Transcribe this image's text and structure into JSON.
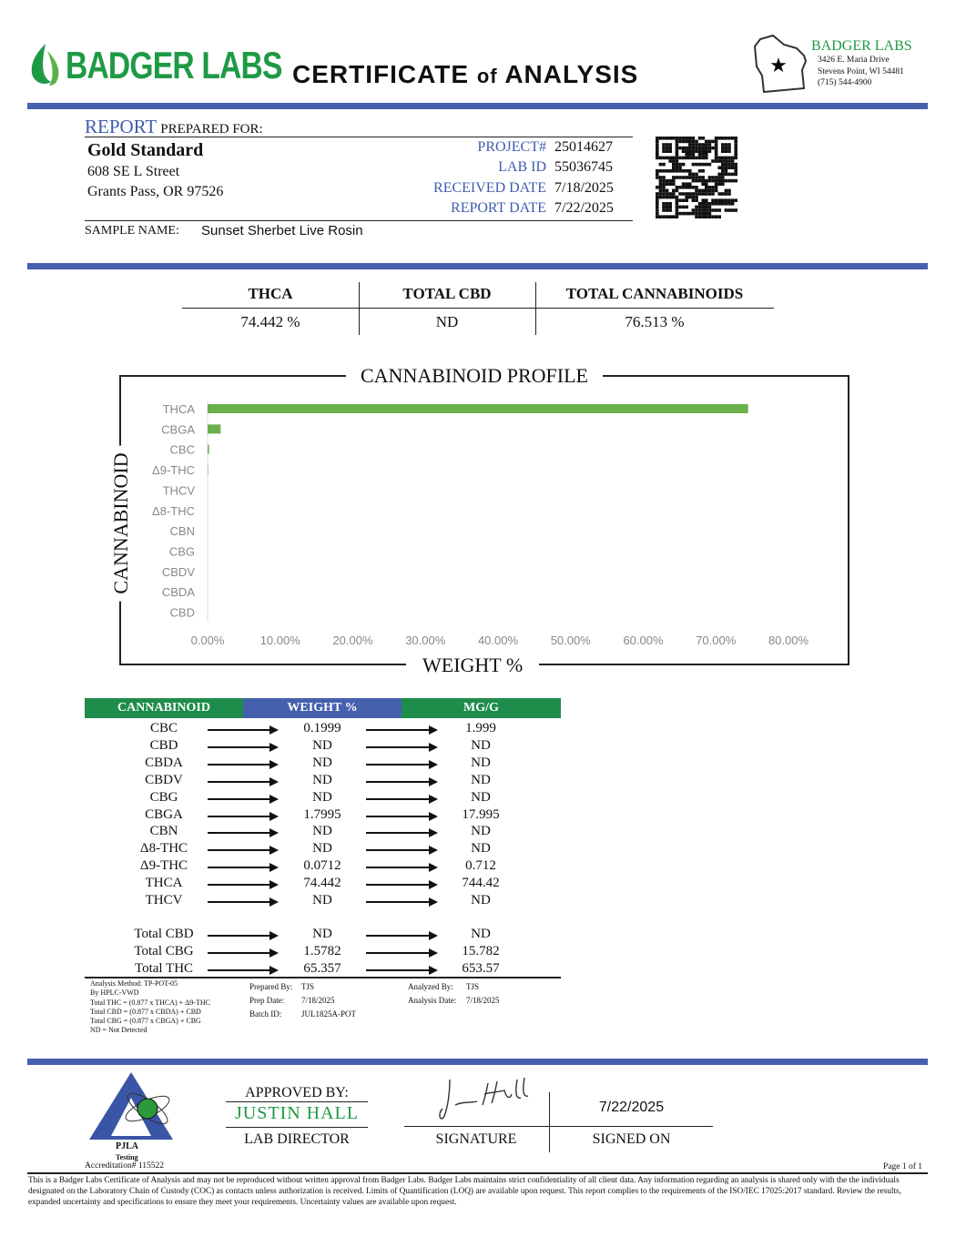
{
  "header": {
    "logo_text": "BADGER LABS",
    "title_part1": "CERTIFICATE",
    "title_part2": "of",
    "title_part3": "ANALYSIS",
    "lab_name": "BADGER LABS",
    "lab_address1": "3426 E. Maria Drive",
    "lab_address2": "Stevens Point, WI 54481",
    "lab_phone": "(715) 544-4900"
  },
  "report": {
    "report_label": "REPORT",
    "prepared_for": "PREPARED FOR:",
    "client_name": "Gold Standard",
    "client_street": "608 SE L Street",
    "client_city": "Grants Pass, OR 97526",
    "fields": [
      {
        "label": "PROJECT#",
        "value": "25014627"
      },
      {
        "label": "LAB ID",
        "value": "55036745"
      },
      {
        "label": "RECEIVED DATE",
        "value": "7/18/2025"
      },
      {
        "label": "REPORT DATE",
        "value": "7/22/2025"
      }
    ],
    "sample_label": "SAMPLE NAME:",
    "sample_name": "Sunset Sherbet Live Rosin"
  },
  "summary": {
    "headers": [
      "THCA",
      "TOTAL CBD",
      "TOTAL CANNABINOIDS"
    ],
    "values": [
      "74.442 %",
      "ND",
      "76.513 %"
    ]
  },
  "chart_data": {
    "type": "bar",
    "orientation": "horizontal",
    "title": "CANNABINOID PROFILE",
    "ylabel": "CANNABINOID",
    "xlabel": "WEIGHT %",
    "categories": [
      "THCA",
      "CBGA",
      "CBC",
      "Δ9-THC",
      "THCV",
      "Δ8-THC",
      "CBN",
      "CBG",
      "CBDV",
      "CBDA",
      "CBD"
    ],
    "values": [
      74.442,
      1.7995,
      0.1999,
      0.0712,
      0,
      0,
      0,
      0,
      0,
      0,
      0
    ],
    "xlim": [
      0,
      80
    ],
    "xticks": [
      "0.00%",
      "10.00%",
      "20.00%",
      "30.00%",
      "40.00%",
      "50.00%",
      "60.00%",
      "70.00%",
      "80.00%"
    ],
    "grid": false,
    "bar_color": "#6ab04c"
  },
  "results": {
    "headers": [
      "CANNABINOID",
      "WEIGHT %",
      "MG/G"
    ],
    "rows": [
      [
        "CBC",
        "0.1999",
        "1.999"
      ],
      [
        "CBD",
        "ND",
        "ND"
      ],
      [
        "CBDA",
        "ND",
        "ND"
      ],
      [
        "CBDV",
        "ND",
        "ND"
      ],
      [
        "CBG",
        "ND",
        "ND"
      ],
      [
        "CBGA",
        "1.7995",
        "17.995"
      ],
      [
        "CBN",
        "ND",
        "ND"
      ],
      [
        "Δ8-THC",
        "ND",
        "ND"
      ],
      [
        "Δ9-THC",
        "0.0712",
        "0.712"
      ],
      [
        "THCA",
        "74.442",
        "744.42"
      ],
      [
        "THCV",
        "ND",
        "ND"
      ]
    ],
    "totals": [
      [
        "Total CBD",
        "ND",
        "ND"
      ],
      [
        "Total CBG",
        "1.5782",
        "15.782"
      ],
      [
        "Total THC",
        "65.357",
        "653.57"
      ]
    ]
  },
  "notes": {
    "method": [
      "Analysis Method: TP-POT-05",
      "By HPLC-VWD",
      "Total THC = (0.877 x  THCA) + Δ9-THC",
      "Total CBD = (0.877 x  CBDA) + CBD",
      "Total CBG = (0.877 x  CBGA) + CBG",
      "ND = Not Detected"
    ],
    "prepared_by_label": "Prepared By:",
    "prepared_by": "TJS",
    "prep_date_label": "Prep Date:",
    "prep_date": "7/18/2025",
    "batch_label": "Batch ID:",
    "batch": "JUL1825A-POT",
    "analyzed_by_label": "Analyzed By:",
    "analyzed_by": "TJS",
    "analysis_date_label": "Analysis Date:",
    "analysis_date": "7/18/2025"
  },
  "approval": {
    "pjla": "PJLA",
    "pjla_sub": "Testing",
    "accreditation": "Accreditation# 115522",
    "approved_by": "APPROVED BY:",
    "approver": "JUSTIN HALL",
    "approver_title": "LAB DIRECTOR",
    "signature_label": "SIGNATURE",
    "signed_date": "7/22/2025",
    "signed_on": "SIGNED ON"
  },
  "footer": {
    "page": "Page 1 of 1",
    "disclaimer": "This is a Badger Labs Certificate of Analysis and may not be reproduced without written approval from Badger Labs. Badger Labs maintains strict confidentiality of all client data. Any information regarding an analysis is shared only with the the individuals designated on the Laboratory Chain of Custody (COC) as contacts unless authorization is received. Limits of Quantification (LOQ) are available upon request. This report complies to the requirements of the ISO/IEC 17025:2017 standard. Review the results, expanded uncertainty and specifications to ensure they meet your requirements. Uncertainty values are available upon request."
  },
  "colors": {
    "brand_green": "#1e9a45",
    "brand_blue": "#4560ad"
  }
}
